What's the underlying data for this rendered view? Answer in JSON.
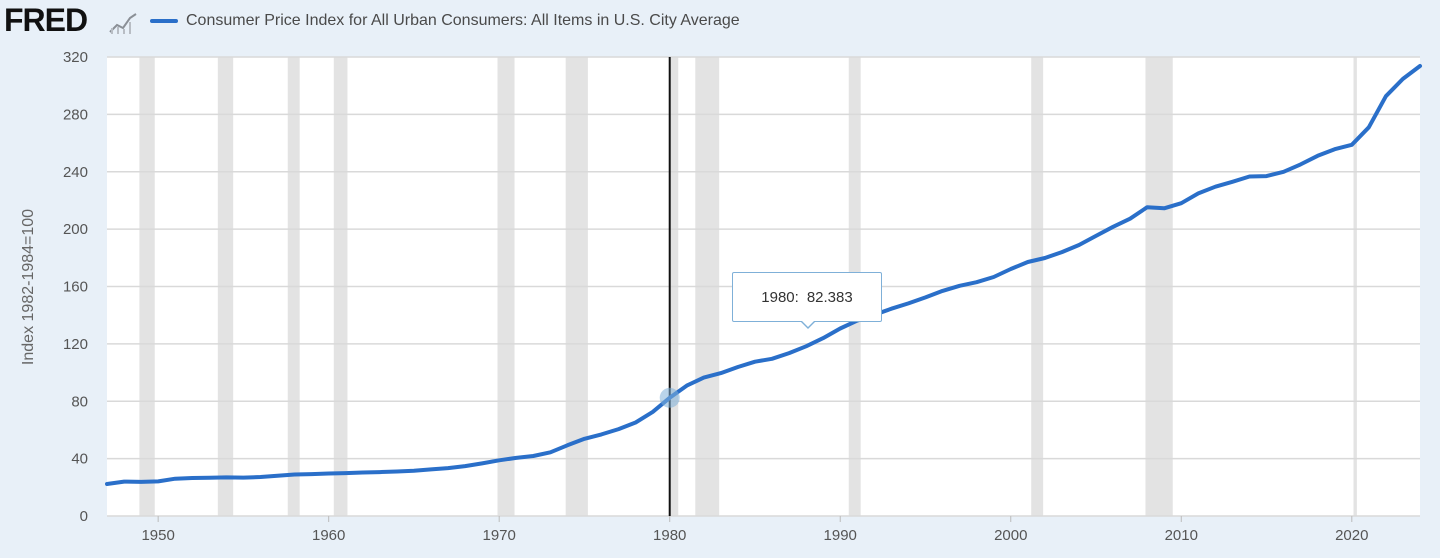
{
  "header": {
    "brand": "FRED",
    "legend_label": "Consumer Price Index for All Urban Consumers: All Items in U.S. City Average"
  },
  "colors": {
    "series": "#2a6fc9",
    "recession": "#e3e3e3",
    "grid": "#d9d9d9",
    "background": "#e8f0f8",
    "plot_background": "#ffffff"
  },
  "tooltip": {
    "date": "1980:",
    "value": "82.383"
  },
  "chart_data": {
    "type": "line",
    "title": "",
    "xlabel": "",
    "ylabel": "Index 1982-1984=100",
    "xlim": [
      1947,
      2024
    ],
    "ylim": [
      0,
      320
    ],
    "x_ticks": [
      1950,
      1960,
      1970,
      1980,
      1990,
      2000,
      2010,
      2020
    ],
    "y_ticks": [
      0,
      40,
      80,
      120,
      160,
      200,
      240,
      280,
      320
    ],
    "grid": true,
    "legend": "top-left",
    "crosshair_x": 1980,
    "recessions": [
      [
        1948.9,
        1949.8
      ],
      [
        1953.5,
        1954.4
      ],
      [
        1957.6,
        1958.3
      ],
      [
        1960.3,
        1961.1
      ],
      [
        1969.9,
        1970.9
      ],
      [
        1973.9,
        1975.2
      ],
      [
        1980.0,
        1980.5
      ],
      [
        1981.5,
        1982.9
      ],
      [
        1990.5,
        1991.2
      ],
      [
        2001.2,
        2001.9
      ],
      [
        2007.9,
        2009.5
      ],
      [
        2020.1,
        2020.3
      ]
    ],
    "series": [
      {
        "name": "Consumer Price Index for All Urban Consumers: All Items in U.S. City Average",
        "x": [
          1947,
          1948,
          1949,
          1950,
          1951,
          1952,
          1953,
          1954,
          1955,
          1956,
          1957,
          1958,
          1959,
          1960,
          1961,
          1962,
          1963,
          1964,
          1965,
          1966,
          1967,
          1968,
          1969,
          1970,
          1971,
          1972,
          1973,
          1974,
          1975,
          1976,
          1977,
          1978,
          1979,
          1980,
          1981,
          1982,
          1983,
          1984,
          1985,
          1986,
          1987,
          1988,
          1989,
          1990,
          1991,
          1992,
          1993,
          1994,
          1995,
          1996,
          1997,
          1998,
          1999,
          2000,
          2001,
          2002,
          2003,
          2004,
          2005,
          2006,
          2007,
          2008,
          2009,
          2010,
          2011,
          2012,
          2013,
          2014,
          2015,
          2016,
          2017,
          2018,
          2019,
          2020,
          2021,
          2022,
          2023,
          2024
        ],
        "values": [
          22.3,
          24.0,
          23.8,
          24.1,
          26.0,
          26.5,
          26.7,
          26.9,
          26.8,
          27.2,
          28.1,
          28.9,
          29.2,
          29.6,
          29.9,
          30.3,
          30.6,
          31.0,
          31.5,
          32.5,
          33.4,
          34.8,
          36.7,
          38.8,
          40.5,
          41.8,
          44.4,
          49.3,
          53.8,
          56.9,
          60.6,
          65.2,
          72.6,
          82.4,
          90.9,
          96.5,
          99.6,
          103.9,
          107.6,
          109.6,
          113.6,
          118.3,
          124.0,
          130.7,
          136.2,
          140.3,
          144.5,
          148.2,
          152.4,
          156.9,
          160.5,
          163.0,
          166.6,
          172.2,
          177.1,
          179.9,
          184.0,
          188.9,
          195.3,
          201.6,
          207.3,
          215.3,
          214.5,
          218.1,
          224.9,
          229.6,
          233.0,
          236.7,
          237.0,
          240.0,
          245.1,
          251.1,
          255.7,
          258.8,
          271.0,
          292.7,
          304.7,
          313.7
        ]
      }
    ]
  }
}
